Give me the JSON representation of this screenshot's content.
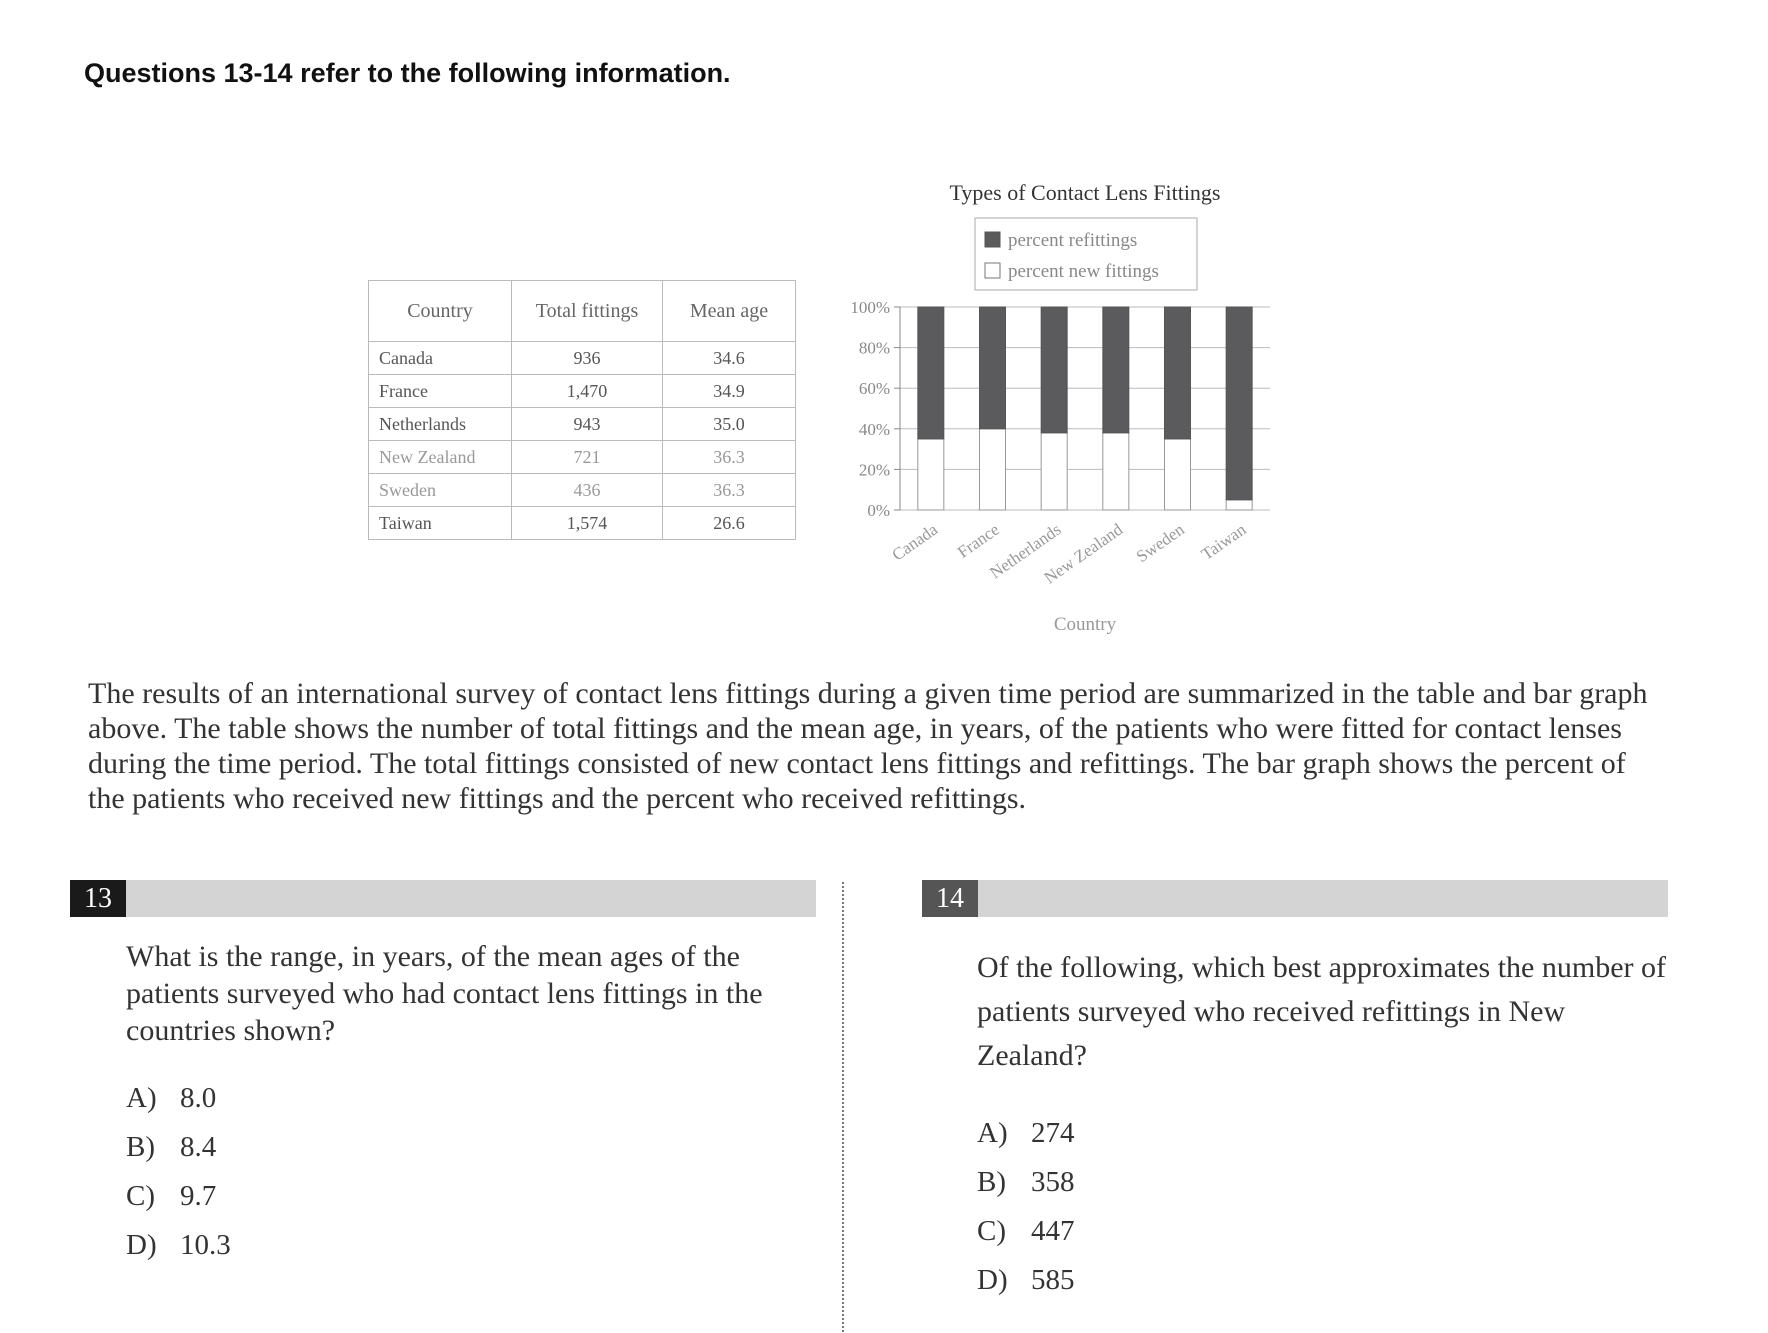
{
  "heading": "Questions 13-14 refer to the following information.",
  "table": {
    "headers": [
      "Country",
      "Total fittings",
      "Mean age"
    ],
    "rows": [
      {
        "country": "Canada",
        "total": "936",
        "age": "34.6"
      },
      {
        "country": "France",
        "total": "1,470",
        "age": "34.9"
      },
      {
        "country": "Netherlands",
        "total": "943",
        "age": "35.0"
      },
      {
        "country": "New Zealand",
        "total": "721",
        "age": "36.3"
      },
      {
        "country": "Sweden",
        "total": "436",
        "age": "36.3"
      },
      {
        "country": "Taiwan",
        "total": "1,574",
        "age": "26.6"
      }
    ]
  },
  "chart_data": {
    "type": "bar",
    "stacked": true,
    "title": "Types of Contact Lens Fittings",
    "xlabel": "Country",
    "ylabel": "",
    "categories": [
      "Canada",
      "France",
      "Netherlands",
      "New Zealand",
      "Sweden",
      "Taiwan"
    ],
    "series": [
      {
        "name": "percent new fittings",
        "values": [
          35,
          40,
          38,
          38,
          35,
          5
        ]
      },
      {
        "name": "percent refittings",
        "values": [
          65,
          60,
          62,
          62,
          65,
          95
        ]
      }
    ],
    "yticks": [
      "0%",
      "20%",
      "40%",
      "60%",
      "80%",
      "100%"
    ],
    "ylim": [
      0,
      100
    ],
    "grid": true,
    "legend": "top",
    "colors": {
      "refittings": "#5b5b5d",
      "new_fittings": "#ffffff",
      "outline": "#999999"
    }
  },
  "passage": "The results of an international survey of contact lens fittings during a given time period are summarized in the table and bar graph above. The table shows the number of total fittings and the mean age, in years, of the patients who were fitted for contact lenses during the time period. The total fittings consisted of new contact lens fittings and refittings. The bar graph shows the percent of the patients who received new fittings and the percent who received refittings.",
  "questions": [
    {
      "number": "13",
      "text": "What is the range, in years, of the mean ages of the patients surveyed who had contact lens fittings in the countries shown?",
      "choices": [
        {
          "letter": "A)",
          "value": "8.0"
        },
        {
          "letter": "B)",
          "value": "8.4"
        },
        {
          "letter": "C)",
          "value": "9.7"
        },
        {
          "letter": "D)",
          "value": "10.3"
        }
      ]
    },
    {
      "number": "14",
      "text": "Of the following, which best approximates the number of patients surveyed who received refittings in New Zealand?",
      "choices": [
        {
          "letter": "A)",
          "value": "274"
        },
        {
          "letter": "B)",
          "value": "358"
        },
        {
          "letter": "C)",
          "value": "447"
        },
        {
          "letter": "D)",
          "value": "585"
        }
      ]
    }
  ]
}
